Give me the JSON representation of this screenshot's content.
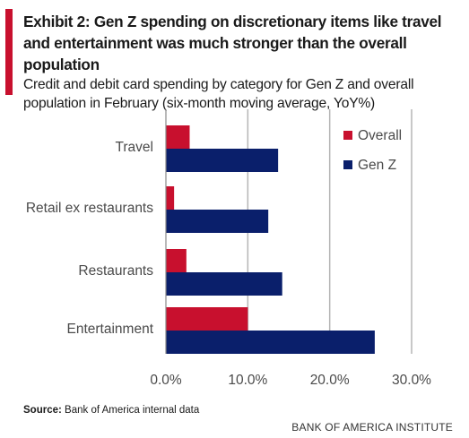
{
  "header": {
    "title": "Exhibit 2: Gen Z spending on discretionary items like travel and entertainment was much stronger than the overall population",
    "subtitle": "Credit and debit card spending by category for Gen Z and overall population in February (six-month moving average, YoY%)"
  },
  "footer": {
    "source_label": "Source:",
    "source_text": "Bank of America internal data",
    "brand": "BANK OF AMERICA INSTITUTE"
  },
  "colors": {
    "accent": "#c8102e",
    "overall": "#c8102e",
    "genz": "#0a1f6b",
    "grid": "#b5b5b5"
  },
  "chart_data": {
    "type": "bar",
    "orientation": "horizontal",
    "categories": [
      "Travel",
      "Retail ex restaurants",
      "Restaurants",
      "Entertainment"
    ],
    "series": [
      {
        "name": "Overall",
        "color": "#c8102e",
        "values": [
          2.9,
          1.0,
          2.5,
          10.0
        ]
      },
      {
        "name": "Gen Z",
        "color": "#0a1f6b",
        "values": [
          13.7,
          12.5,
          14.2,
          25.5
        ]
      }
    ],
    "xlim": [
      0,
      30
    ],
    "xticks": [
      "0.0%",
      "10.0%",
      "20.0%",
      "30.0%"
    ],
    "xtick_values": [
      0,
      10,
      20,
      30
    ],
    "grid": "vertical",
    "legend_position": "top-right",
    "title": "",
    "xlabel": "",
    "ylabel": ""
  }
}
